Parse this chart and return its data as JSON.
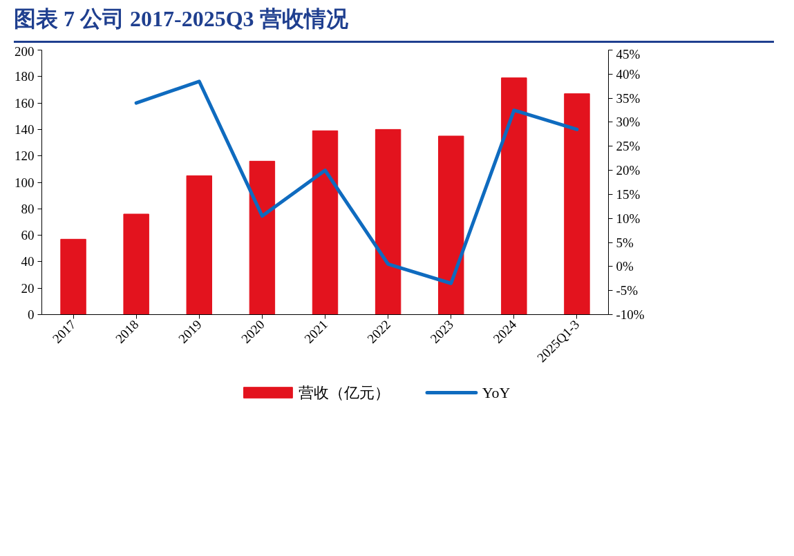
{
  "chart_data": {
    "type": "bar",
    "title": "图表 7  公司 2017-2025Q3 营收情况",
    "categories": [
      "2017",
      "2018",
      "2019",
      "2020",
      "2021",
      "2022",
      "2023",
      "2024",
      "2025Q1-3"
    ],
    "series": [
      {
        "name": "营收（亿元）",
        "color": "#e3131e",
        "values": [
          57,
          76,
          105,
          116,
          139,
          140,
          135,
          179,
          167
        ]
      },
      {
        "name": "YoY",
        "type": "line",
        "axis": "y2",
        "color": "#0f6bbf",
        "values": [
          null,
          34,
          38.5,
          10.5,
          20,
          0.5,
          -3.5,
          32.5,
          28.5
        ]
      }
    ],
    "ylim": [
      0,
      200
    ],
    "yticks": [
      0,
      20,
      40,
      60,
      80,
      100,
      120,
      140,
      160,
      180,
      200
    ],
    "y2lim": [
      -10,
      45
    ],
    "y2ticks": [
      {
        "value": -10,
        "label": "-10%"
      },
      {
        "value": -5,
        "label": "-5%"
      },
      {
        "value": 0,
        "label": "0%"
      },
      {
        "value": 5,
        "label": "5%"
      },
      {
        "value": 10,
        "label": "10%"
      },
      {
        "value": 15,
        "label": "15%"
      },
      {
        "value": 20,
        "label": "20%"
      },
      {
        "value": 25,
        "label": "25%"
      },
      {
        "value": 30,
        "label": "30%"
      },
      {
        "value": 35,
        "label": "35%"
      },
      {
        "value": 40,
        "label": "40%"
      },
      {
        "value": 45,
        "label": "45%"
      }
    ],
    "grid": false,
    "legend": "bottom",
    "marker": "none",
    "line_style": "solid"
  }
}
